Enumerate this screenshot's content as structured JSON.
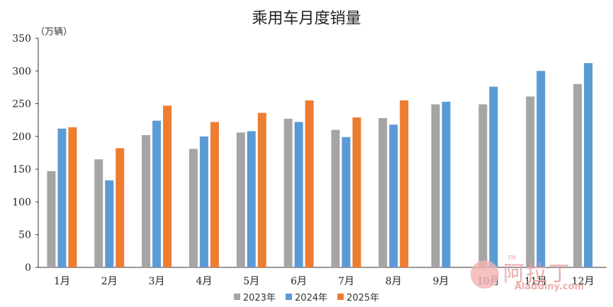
{
  "chart_data": {
    "type": "bar",
    "title": "乘用车月度销量",
    "unit_label": "（万辆）",
    "categories": [
      "1月",
      "2月",
      "3月",
      "4月",
      "5月",
      "6月",
      "7月",
      "8月",
      "9月",
      "10月",
      "11月",
      "12月"
    ],
    "ylim": [
      0,
      350
    ],
    "yticks": [
      0,
      50,
      100,
      150,
      200,
      250,
      300,
      350
    ],
    "grid": false,
    "legend_position": "bottom",
    "series": [
      {
        "name": "2023年",
        "color": "#a5a5a5",
        "values": [
          147,
          165,
          202,
          181,
          206,
          227,
          210,
          228,
          249,
          249,
          261,
          280
        ]
      },
      {
        "name": "2024年",
        "color": "#5b9bd5",
        "values": [
          212,
          133,
          224,
          200,
          208,
          222,
          199,
          218,
          253,
          276,
          300,
          312
        ]
      },
      {
        "name": "2025年",
        "color": "#ed7d31",
        "values": [
          214,
          182,
          247,
          222,
          236,
          255,
          229,
          255,
          null,
          null,
          null,
          null
        ]
      }
    ]
  },
  "watermark": {
    "text": "阿拉丁",
    "url": "Aladdiny.com",
    "tm": "TM"
  }
}
